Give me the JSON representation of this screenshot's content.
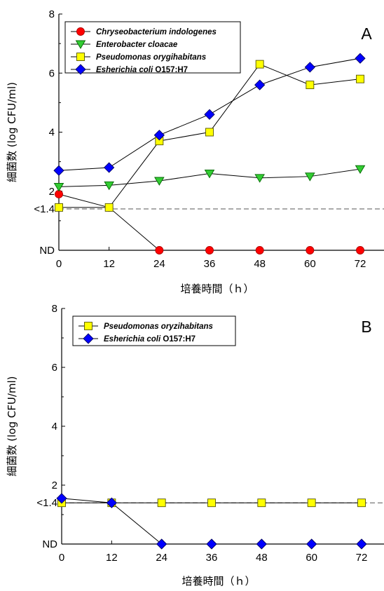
{
  "chart_data": [
    {
      "type": "line",
      "panel_label": "A",
      "xlabel": "培養時間（ｈ）",
      "ylabel": "細菌数 (log CFU/ml)",
      "x": [
        0,
        12,
        24,
        36,
        48,
        60,
        72
      ],
      "xticks": [
        "0",
        "12",
        "24",
        "36",
        "48",
        "60",
        "72"
      ],
      "yticks": [
        {
          "value": 0,
          "label": "ND"
        },
        {
          "value": 1.4,
          "label": "<1.4"
        },
        {
          "value": 2,
          "label": "2"
        },
        {
          "value": 4,
          "label": "4"
        },
        {
          "value": 6,
          "label": "6"
        },
        {
          "value": 8,
          "label": "8"
        }
      ],
      "ylim": [
        0,
        8
      ],
      "detection_limit": 1.4,
      "legend_position": "top-left",
      "series": [
        {
          "name": "Chryseobacterium indologenes",
          "name_suffix": "",
          "marker": "circle",
          "color": "#ff0000",
          "values": [
            1.9,
            1.45,
            0,
            0,
            0,
            0,
            0
          ]
        },
        {
          "name": "Enterobacter cloacae",
          "name_suffix": "",
          "marker": "triangle-down",
          "color": "#33cc33",
          "values": [
            2.15,
            2.2,
            2.35,
            2.6,
            2.45,
            2.5,
            2.75
          ]
        },
        {
          "name": "Pseudomonas orygihabitans",
          "name_suffix": "",
          "marker": "square",
          "color": "#ffff00",
          "values": [
            1.45,
            1.45,
            3.7,
            4.0,
            6.3,
            5.6,
            5.8
          ]
        },
        {
          "name": "Esherichia coli",
          "name_suffix": " O157:H7",
          "marker": "diamond",
          "color": "#0000ff",
          "values": [
            2.7,
            2.8,
            3.9,
            4.6,
            5.6,
            6.2,
            6.5
          ]
        }
      ]
    },
    {
      "type": "line",
      "panel_label": "B",
      "xlabel": "培養時間（ｈ）",
      "ylabel": "細菌数 (log CFU/ml)",
      "x": [
        0,
        12,
        24,
        36,
        48,
        60,
        72
      ],
      "xticks": [
        "0",
        "12",
        "24",
        "36",
        "48",
        "60",
        "72"
      ],
      "yticks": [
        {
          "value": 0,
          "label": "ND"
        },
        {
          "value": 1.4,
          "label": "<1.4"
        },
        {
          "value": 2,
          "label": "2"
        },
        {
          "value": 4,
          "label": "4"
        },
        {
          "value": 6,
          "label": "6"
        },
        {
          "value": 8,
          "label": "8"
        }
      ],
      "ylim": [
        0,
        8
      ],
      "detection_limit": 1.4,
      "legend_position": "top-left",
      "series": [
        {
          "name": "Pseudomonas oryzihabitans",
          "name_suffix": "",
          "marker": "square",
          "color": "#ffff00",
          "values": [
            1.4,
            1.4,
            1.4,
            1.4,
            1.4,
            1.4,
            1.4
          ]
        },
        {
          "name": "Esherichia coli",
          "name_suffix": " O157:H7",
          "marker": "diamond",
          "color": "#0000ff",
          "values": [
            1.55,
            1.4,
            0,
            0,
            0,
            0,
            0
          ]
        }
      ]
    }
  ]
}
